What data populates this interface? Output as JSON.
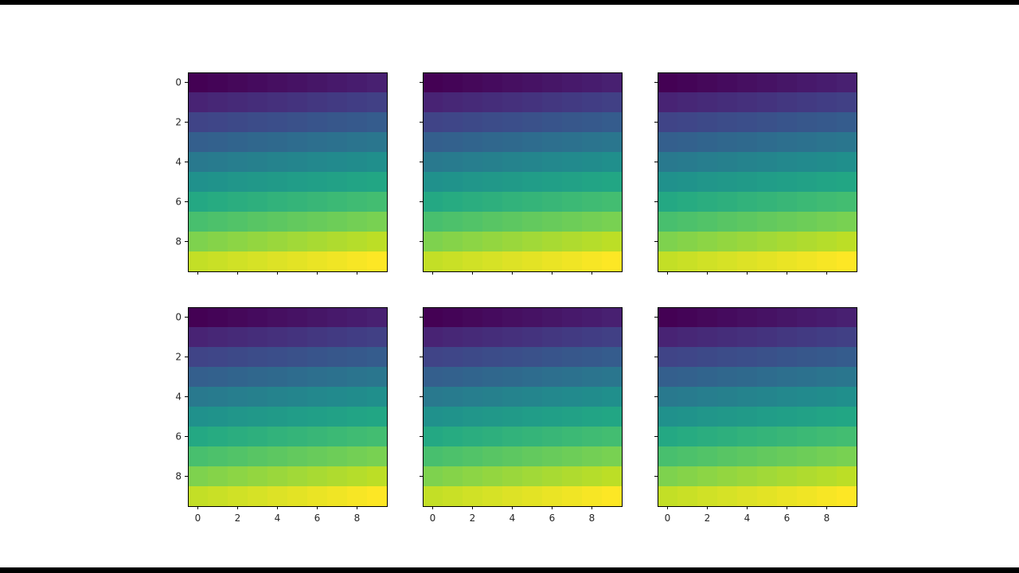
{
  "chart_data": {
    "type": "heatmap",
    "layout": {
      "rows": 2,
      "cols": 3,
      "sharex": true,
      "sharey": true
    },
    "colormap": "viridis",
    "grid": false,
    "n_rows": 10,
    "n_cols": 10,
    "value_formula": "row*10 + col (0..99)",
    "xlim": [
      -0.5,
      9.5
    ],
    "ylim": [
      9.5,
      -0.5
    ],
    "x_ticks": [
      "0",
      "2",
      "4",
      "6",
      "8"
    ],
    "y_ticks": [
      "0",
      "2",
      "4",
      "6",
      "8"
    ],
    "title": "",
    "xlabel": "",
    "ylabel": ""
  },
  "colors": {
    "frame": "#000000",
    "tick": "#262626",
    "background": "#ffffff"
  }
}
